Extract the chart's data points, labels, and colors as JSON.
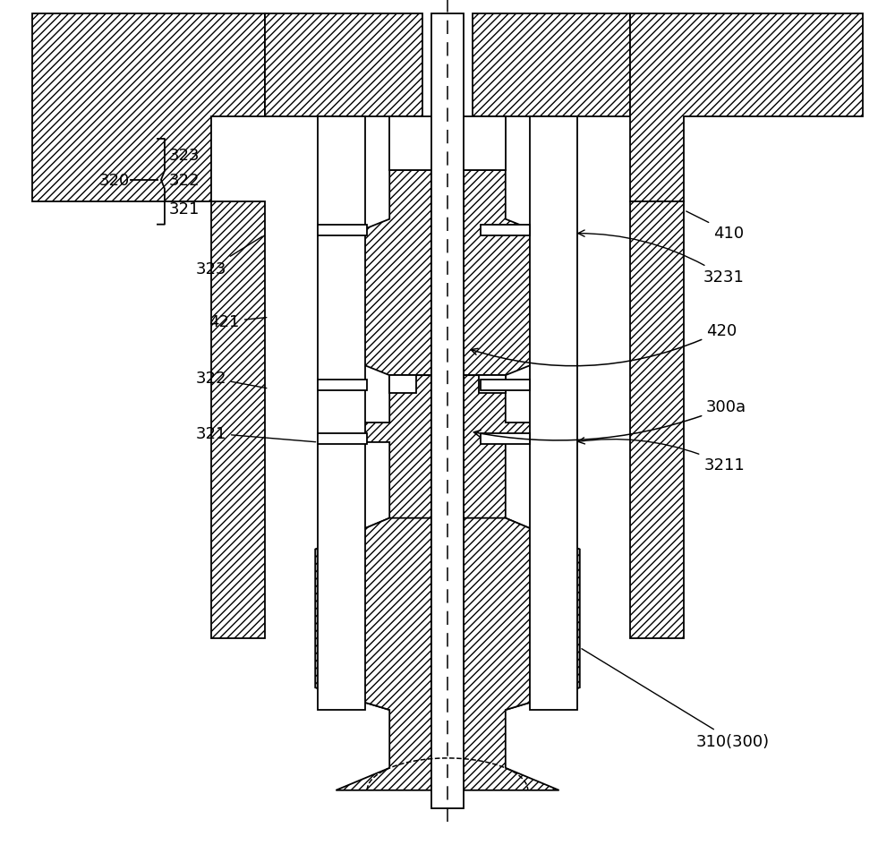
{
  "bg_color": "#ffffff",
  "line_color": "#000000",
  "figsize": [
    10.0,
    9.45
  ],
  "dpi": 100,
  "labels": {
    "323_leg": "323",
    "322_leg": "322",
    "321_leg": "321",
    "320_leg": "320",
    "323_lbl": "323",
    "421_lbl": "421",
    "322_lbl": "322",
    "321_lbl": "321",
    "410_lbl": "410",
    "3231_lbl": "3231",
    "420_lbl": "420",
    "300a_lbl": "300a",
    "3211_lbl": "3211",
    "310_lbl": "310(300)"
  }
}
